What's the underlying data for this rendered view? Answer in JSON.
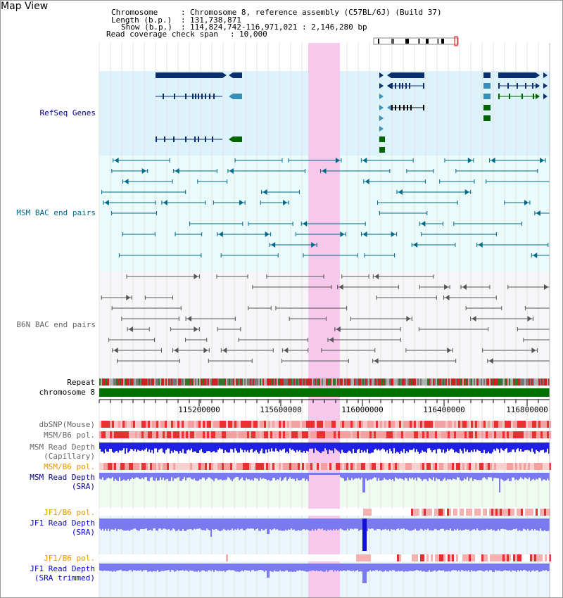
{
  "title": "Map View",
  "header": {
    "chromosome_key": "Chromosome",
    "chromosome_val": "Chromosome 8, reference assembly (C57BL/6J) (Build 37)",
    "length_key": "Length (b.p.)",
    "length_val": "131,738,871",
    "show_key": "Show (b.p.)",
    "show_val": "114,824,742-116,971,021 : 2,146,280 bp",
    "coverage_key": "Read coverage check span",
    "coverage_val": "10,000"
  },
  "tracks": {
    "refseq": "RefSeq Genes",
    "msm_bac": "MSM BAC end pairs",
    "b6n_bac": "B6N BAC end pairs",
    "repeat": "Repeat",
    "chromosome": "chromosome 8",
    "dbsnp": "dbSNP(Mouse)",
    "msm_pol1": "MSM/B6 pol.",
    "msm_depth_cap_1": "MSM Read Depth",
    "msm_depth_cap_2": "(Capillary)",
    "msm_pol2": "MSM/B6 pol.",
    "msm_depth_sra_1": "MSM Read Depth",
    "msm_depth_sra_2": "(SRA)",
    "jf1_pol1": "JF1/B6 pol.",
    "jf1_depth_sra_1": "JF1 Read Depth",
    "jf1_depth_sra_2": "(SRA)",
    "jf1_pol2": "JF1/B6 pol.",
    "jf1_depth_trim_1": "JF1 Read Depth",
    "jf1_depth_trim_2": "(SRA trimmed)"
  },
  "axis_ticks": [
    "115200000",
    "115600000",
    "116000000",
    "116400000",
    "116800000"
  ],
  "colors": {
    "refseq_dark": "#0a2e6e",
    "refseq_light": "#3a8fb8",
    "refseq_green": "#006400",
    "msm_bac": "#006a8a",
    "b6n_bac": "#555555",
    "highlight": "#f5c8ec",
    "chromosome": "#007000",
    "depth_capillary": "#1f1fe6",
    "depth_sra": "#7a7af0",
    "snp_red": "#e03030"
  }
}
